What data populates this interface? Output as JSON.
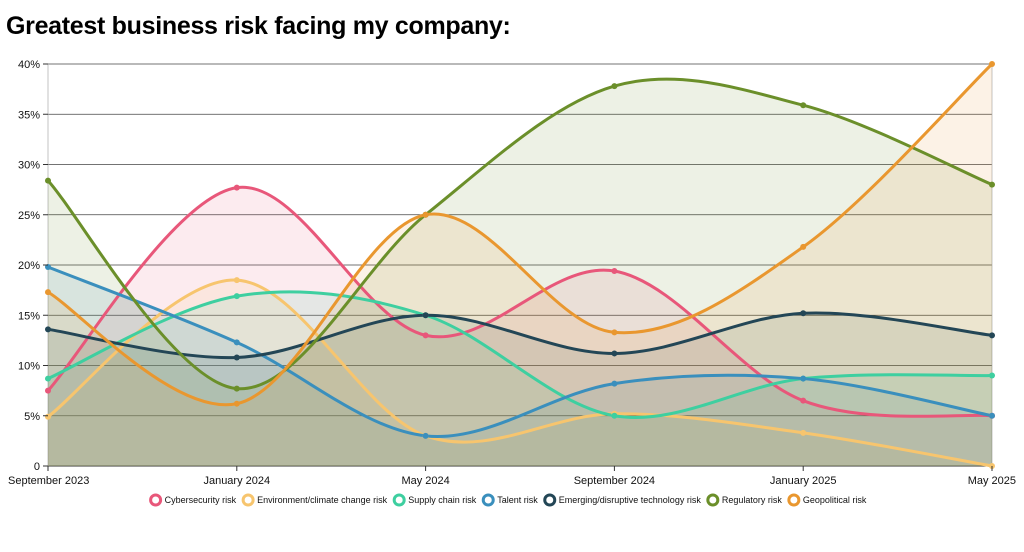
{
  "title": "Greatest business risk facing my company:",
  "chart_data": {
    "type": "area",
    "title": "Greatest business risk facing my company:",
    "xlabel": "",
    "ylabel": "",
    "ylim": [
      0,
      40
    ],
    "y_ticks": [
      "0",
      "5%",
      "10%",
      "15%",
      "20%",
      "25%",
      "30%",
      "35%",
      "40%"
    ],
    "y_tick_values": [
      0,
      5,
      10,
      15,
      20,
      25,
      30,
      35,
      40
    ],
    "x": [
      "September 2023",
      "January 2024",
      "May 2024",
      "September 2024",
      "January 2025",
      "May 2025"
    ],
    "grid": true,
    "legend_position": "bottom",
    "series": [
      {
        "name": "Cybersecurity risk",
        "color": "#e8577a",
        "values": [
          7.5,
          27.7,
          13.0,
          19.4,
          6.5,
          5.0
        ]
      },
      {
        "name": "Environment/climate change risk",
        "color": "#f7c56e",
        "values": [
          4.9,
          18.5,
          3.0,
          5.2,
          3.3,
          0
        ]
      },
      {
        "name": "Supply chain risk",
        "color": "#3ecfa0",
        "values": [
          8.7,
          16.9,
          15.0,
          5.0,
          8.7,
          9.0
        ]
      },
      {
        "name": "Talent risk",
        "color": "#3a8fbd",
        "values": [
          19.8,
          12.3,
          3.0,
          8.2,
          8.7,
          5.0
        ]
      },
      {
        "name": "Emerging/disruptive technology risk",
        "color": "#234656",
        "values": [
          13.6,
          10.8,
          15.0,
          11.2,
          15.2,
          13.0
        ]
      },
      {
        "name": "Regulatory risk",
        "color": "#6b8f2a",
        "values": [
          28.4,
          7.7,
          25.0,
          37.8,
          35.9,
          28.0
        ]
      },
      {
        "name": "Geopolitical risk",
        "color": "#e9972f",
        "values": [
          17.3,
          6.2,
          25.0,
          13.3,
          21.8,
          40.0
        ]
      }
    ]
  }
}
